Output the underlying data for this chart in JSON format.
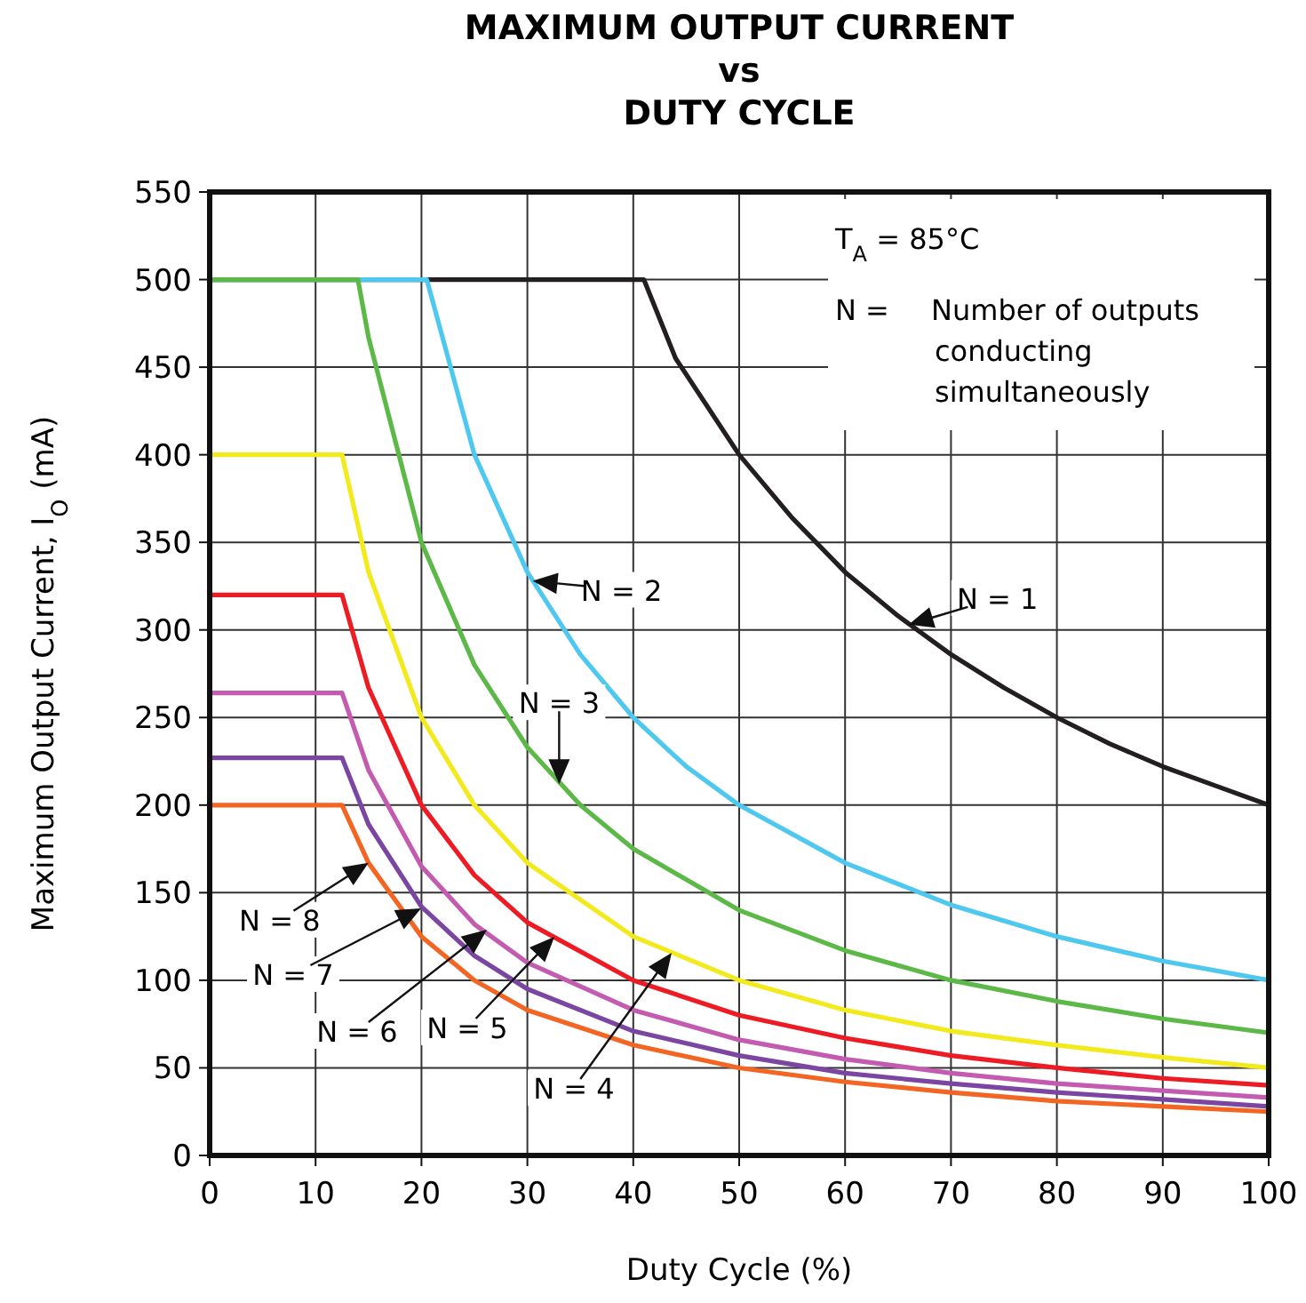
{
  "chart_data": {
    "type": "line",
    "title": "MAXIMUM OUTPUT CURRENT\nvs\nDUTY CYCLE",
    "xlabel": "Duty Cycle (%)",
    "ylabel": "Maximum Output Current, I$_{O}$ (mA)",
    "xlim": [
      0,
      100
    ],
    "xticks": [
      0,
      10,
      20,
      30,
      40,
      50,
      60,
      70,
      80,
      90,
      100
    ],
    "ylim": [
      0,
      550
    ],
    "yticks": [
      0,
      50,
      100,
      150,
      200,
      250,
      300,
      350,
      400,
      450,
      500,
      550
    ],
    "grid": true,
    "marker": "none",
    "line_style": "solid",
    "series": [
      {
        "color": "#231f20",
        "x": [
          0,
          41,
          44,
          50,
          55,
          60,
          65,
          70,
          75,
          80,
          85,
          90,
          95,
          100
        ],
        "values": [
          500,
          500,
          455,
          400,
          364,
          333,
          308,
          286,
          267,
          250,
          235,
          222,
          211,
          200
        ]
      },
      {
        "color": "#4fc8f0",
        "x": [
          0,
          20.5,
          25,
          30,
          35,
          40,
          45,
          50,
          60,
          70,
          80,
          90,
          100
        ],
        "values": [
          500,
          500,
          400,
          333,
          286,
          250,
          222,
          200,
          167,
          143,
          125,
          111,
          100
        ]
      },
      {
        "color": "#5cb947",
        "x": [
          0,
          14,
          15,
          20,
          25,
          30,
          35,
          40,
          50,
          60,
          70,
          80,
          90,
          100
        ],
        "values": [
          500,
          500,
          467,
          350,
          280,
          233,
          200,
          175,
          140,
          117,
          100,
          88,
          78,
          70
        ]
      },
      {
        "color": "#f2ea1d",
        "x": [
          0,
          12.5,
          15,
          20,
          25,
          30,
          40,
          50,
          60,
          70,
          80,
          90,
          100
        ],
        "values": [
          400,
          400,
          333,
          250,
          200,
          167,
          125,
          100,
          83,
          71,
          63,
          56,
          50
        ]
      },
      {
        "color": "#ed1c24",
        "x": [
          0,
          12.5,
          15,
          20,
          25,
          30,
          40,
          50,
          60,
          70,
          80,
          90,
          100
        ],
        "values": [
          320,
          320,
          267,
          200,
          160,
          133,
          100,
          80,
          67,
          57,
          50,
          44,
          40
        ]
      },
      {
        "color": "#c35cb0",
        "x": [
          0,
          12.5,
          15,
          20,
          25,
          30,
          40,
          50,
          60,
          70,
          80,
          90,
          100
        ],
        "values": [
          264,
          264,
          220,
          165,
          132,
          110,
          83,
          66,
          55,
          47,
          41,
          37,
          33
        ]
      },
      {
        "color": "#7b46a1",
        "x": [
          0,
          12.5,
          15,
          20,
          25,
          30,
          40,
          50,
          60,
          70,
          80,
          90,
          100
        ],
        "values": [
          227,
          227,
          189,
          142,
          114,
          95,
          71,
          57,
          47,
          41,
          36,
          32,
          28
        ]
      },
      {
        "color": "#f26522",
        "x": [
          0,
          12.5,
          15,
          20,
          25,
          30,
          40,
          50,
          60,
          70,
          80,
          90,
          100
        ],
        "values": [
          200,
          200,
          167,
          125,
          100,
          83,
          63,
          50,
          42,
          36,
          31,
          28,
          25
        ]
      }
    ],
    "annotations": [
      "T$_{A}$ = 85°C",
      "N = Number of outputs conducting simultaneously",
      {
        "text": "N = 1",
        "x": 66,
        "y": 303
      },
      {
        "text": "N = 2",
        "x": 30.5,
        "y": 328
      },
      {
        "text": "N = 3",
        "x": 33,
        "y": 212
      },
      "N = 4",
      "N = 5",
      "N = 6",
      "N = 7",
      {
        "text": "N = 8",
        "x": 15,
        "y": 167
      }
    ]
  }
}
